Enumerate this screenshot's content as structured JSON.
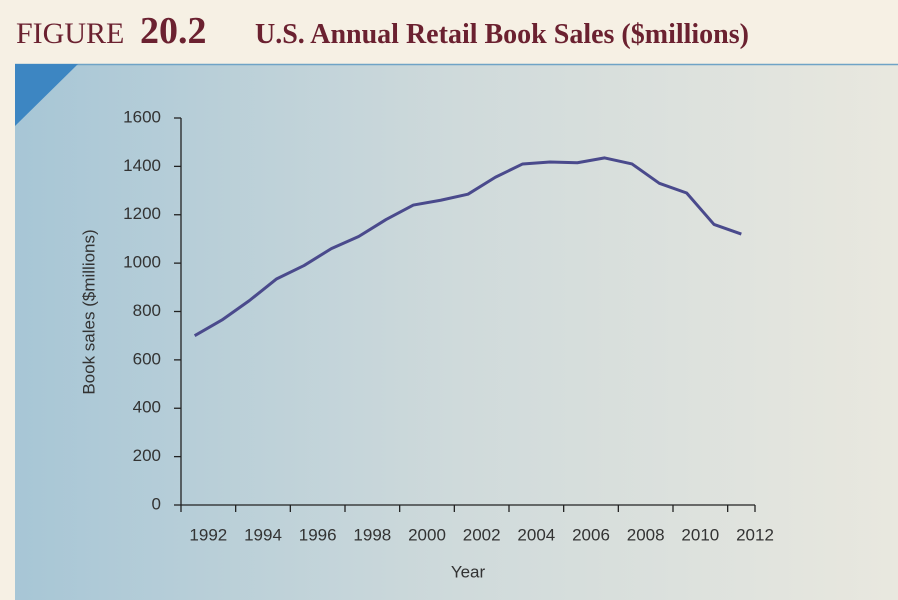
{
  "chart_data": {
    "type": "line",
    "figure_label": "FIGURE",
    "figure_number": "20.2",
    "title": "U.S. Annual Retail Book Sales ($millions)",
    "x_label": "Year",
    "y_label": "Book sales ($millions)",
    "x": [
      1992,
      1993,
      1994,
      1995,
      1996,
      1997,
      1998,
      1999,
      2000,
      2001,
      2002,
      2003,
      2004,
      2005,
      2006,
      2007,
      2008,
      2009,
      2010,
      2011,
      2012
    ],
    "series": [
      {
        "name": "Book sales",
        "color": "#4a4a8c",
        "values": [
          700,
          765,
          845,
          935,
          990,
          1060,
          1110,
          1180,
          1240,
          1260,
          1285,
          1355,
          1410,
          1418,
          1415,
          1435,
          1410,
          1330,
          1290,
          1160,
          1120
        ]
      }
    ],
    "xlim": [
      1991.5,
      2012.5
    ],
    "xticks": [
      1992,
      1994,
      1996,
      1998,
      2000,
      2002,
      2004,
      2006,
      2008,
      2010,
      2012
    ],
    "ylim": [
      0,
      1600
    ],
    "yticks": [
      0,
      200,
      400,
      600,
      800,
      1000,
      1200,
      1400,
      1600
    ],
    "grid": false
  }
}
